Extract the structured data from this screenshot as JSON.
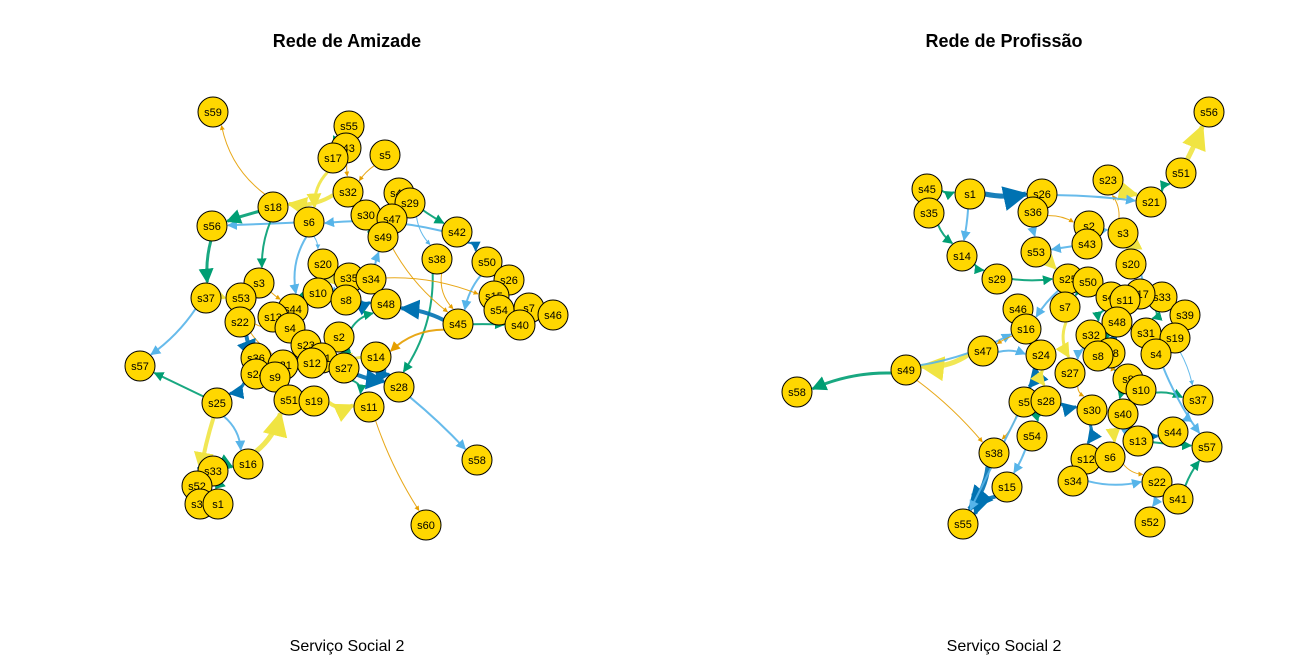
{
  "colors": {
    "node_fill": "#FFD700",
    "edge_palette": [
      "#E69F00",
      "#56B4E9",
      "#009E73",
      "#F0E442",
      "#0072B2"
    ]
  },
  "panels": [
    {
      "title": "Rede de Amizade",
      "caption": "Serviço Social 2",
      "nodes": [
        "s59",
        "s55",
        "s43",
        "s5",
        "s17",
        "s32",
        "s41",
        "s29",
        "s18",
        "s30",
        "s47",
        "s6",
        "s56",
        "s49",
        "s42",
        "s38",
        "s50",
        "s20",
        "s26",
        "s3",
        "s35",
        "s34",
        "s15",
        "s37",
        "s53",
        "s10",
        "s54",
        "s7",
        "s46",
        "s8",
        "s48",
        "s44",
        "s40",
        "s45",
        "s22",
        "s13",
        "s4",
        "s23",
        "s2",
        "s36",
        "s31",
        "s12",
        "s21",
        "s14",
        "s57",
        "s24",
        "s9",
        "s27",
        "s28",
        "s25",
        "s51",
        "s19",
        "s11",
        "s58",
        "s16",
        "s33",
        "s52",
        "s39",
        "s1",
        "s60"
      ]
    },
    {
      "title": "Rede de Profissão",
      "caption": "Serviço Social 2",
      "nodes": [
        "s56",
        "s51",
        "s23",
        "s45",
        "s1",
        "s26",
        "s21",
        "s35",
        "s36",
        "s2",
        "s43",
        "s3",
        "s53",
        "s14",
        "s20",
        "s29",
        "s25",
        "s50",
        "s33",
        "s17",
        "s42",
        "s11",
        "s39",
        "s46",
        "s7",
        "s48",
        "s16",
        "s32",
        "s31",
        "s19",
        "s47",
        "s24",
        "s18",
        "s8",
        "s4",
        "s49",
        "s27",
        "s9",
        "s10",
        "s58",
        "s37",
        "s5",
        "s28",
        "s30",
        "s40",
        "s44",
        "s54",
        "s13",
        "s38",
        "s12",
        "s6",
        "s57",
        "s34",
        "s22",
        "s15",
        "s41",
        "s55",
        "s52"
      ]
    }
  ]
}
